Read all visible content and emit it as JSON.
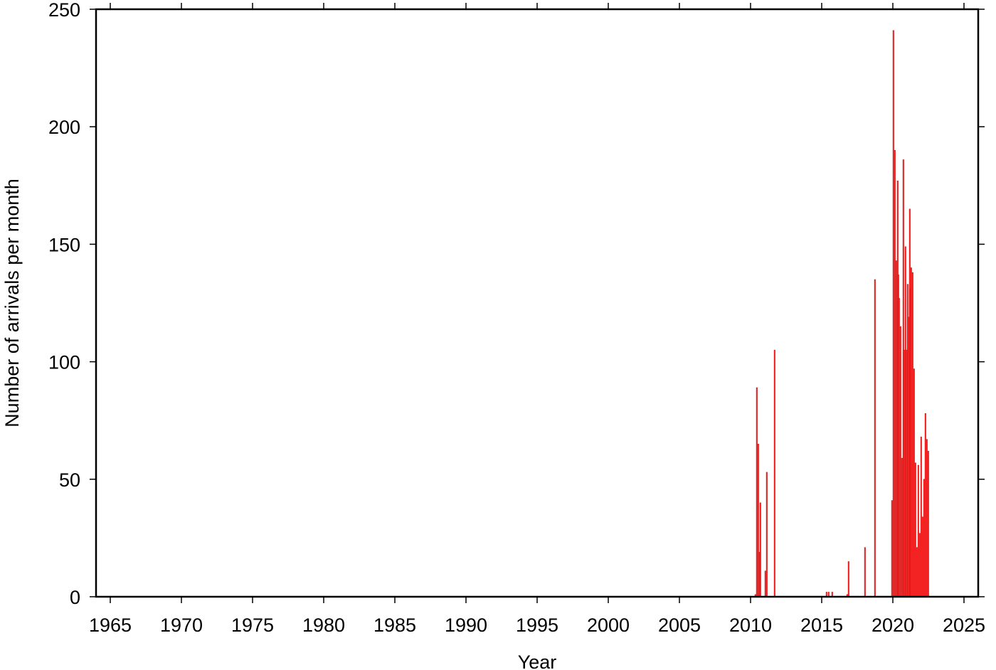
{
  "chart_data": {
    "type": "bar",
    "x_label": "Year",
    "y_label": "Number of arrivals per month",
    "color": "#ff2a2a",
    "x": [
      2010.3,
      2010.4,
      2010.5,
      2010.6,
      2010.65,
      2011.0,
      2011.1,
      2011.65,
      2015.3,
      2015.45,
      2015.7,
      2016.75,
      2016.85,
      2018.0,
      2018.7,
      2019.9,
      2020.0,
      2020.1,
      2020.2,
      2020.3,
      2020.35,
      2020.4,
      2020.5,
      2020.6,
      2020.7,
      2020.75,
      2020.85,
      2020.9,
      2021.0,
      2021.05,
      2021.15,
      2021.2,
      2021.25,
      2021.35,
      2021.45,
      2021.55,
      2021.65,
      2021.75,
      2021.85,
      2021.95,
      2022.05,
      2022.15,
      2022.25,
      2022.35,
      2022.45
    ],
    "values": [
      1,
      89,
      65,
      19,
      40,
      11,
      53,
      105,
      2,
      2,
      2,
      1,
      15,
      21,
      135,
      41,
      241,
      190,
      143,
      177,
      137,
      127,
      115,
      59,
      186,
      105,
      149,
      105,
      133,
      119,
      165,
      131,
      140,
      138,
      97,
      57,
      21,
      56,
      27,
      68,
      34,
      50,
      78,
      67,
      62
    ],
    "xlim": [
      1964,
      2026
    ],
    "xticks": [
      1965,
      1970,
      1975,
      1980,
      1985,
      1990,
      1995,
      2000,
      2005,
      2010,
      2015,
      2020,
      2025
    ],
    "ylim": [
      0,
      250
    ],
    "yticks": [
      0,
      50,
      100,
      150,
      200,
      250
    ]
  }
}
